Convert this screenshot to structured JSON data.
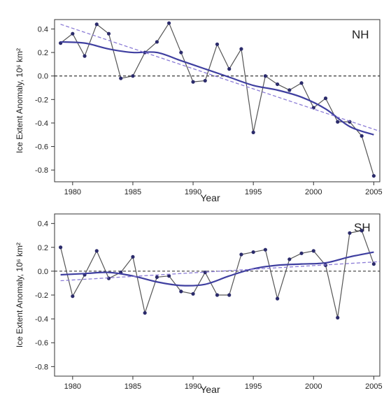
{
  "chart_data": [
    {
      "type": "line",
      "label": "NH",
      "xlabel": "Year",
      "ylabel": "Ice Extent Anomaly, 10⁶ km²",
      "xlim": [
        1978.5,
        2005.5
      ],
      "ylim": [
        -0.9,
        0.48
      ],
      "xticks": [
        1980,
        1985,
        1990,
        1995,
        2000,
        2005
      ],
      "yticks": [
        -0.8,
        -0.6,
        -0.4,
        -0.2,
        0.0,
        0.2,
        0.4
      ],
      "ytick_labels": [
        "-0.8",
        "-0.6",
        "-0.4",
        "-0.2",
        "0.0",
        "0.2",
        "0.4"
      ],
      "zero_line": true,
      "grid": false,
      "colors": {
        "observed": "#555555",
        "points": "#2b2b6b",
        "smooth": "#3f3fa0",
        "trend": "#8b7bd6"
      },
      "series": [
        {
          "kind": "observed",
          "x": [
            1979,
            1980,
            1981,
            1982,
            1983,
            1984,
            1985,
            1986,
            1987,
            1988,
            1989,
            1990,
            1991,
            1992,
            1993,
            1994,
            1995,
            1996,
            1997,
            1998,
            1999,
            2000,
            2001,
            2002,
            2003,
            2004,
            2005
          ],
          "y": [
            0.28,
            0.36,
            0.17,
            0.44,
            0.36,
            -0.02,
            0.0,
            0.2,
            0.29,
            0.45,
            0.2,
            -0.05,
            -0.04,
            0.27,
            0.06,
            0.23,
            -0.48,
            0.0,
            -0.07,
            -0.12,
            -0.06,
            -0.27,
            -0.19,
            -0.39,
            -0.39,
            -0.51,
            -0.85
          ]
        },
        {
          "kind": "smooth",
          "x": [
            1979,
            1981,
            1983,
            1985,
            1987,
            1989,
            1991,
            1993,
            1995,
            1997,
            1999,
            2001,
            2003,
            2005
          ],
          "y": [
            0.29,
            0.28,
            0.23,
            0.2,
            0.2,
            0.13,
            0.06,
            -0.01,
            -0.08,
            -0.12,
            -0.18,
            -0.28,
            -0.43,
            -0.5
          ]
        },
        {
          "kind": "trend",
          "x": [
            1979,
            2005.5
          ],
          "y": [
            0.44,
            -0.47
          ]
        }
      ]
    },
    {
      "type": "line",
      "label": "SH",
      "xlabel": "Year",
      "ylabel": "Ice Extent Anomaly, 10⁶ km²",
      "xlim": [
        1978.5,
        2005.5
      ],
      "ylim": [
        -0.88,
        0.48
      ],
      "xticks": [
        1980,
        1985,
        1990,
        1995,
        2000,
        2005
      ],
      "yticks": [
        -0.8,
        -0.6,
        -0.4,
        -0.2,
        0.0,
        0.2,
        0.4
      ],
      "ytick_labels": [
        "-0.8",
        "-0.6",
        "-0.4",
        "-0.2",
        "0.0",
        "0.2",
        "0.4"
      ],
      "zero_line": true,
      "grid": false,
      "colors": {
        "observed": "#555555",
        "points": "#2b2b6b",
        "smooth": "#3f3fa0",
        "trend": "#8b7bd6"
      },
      "series": [
        {
          "kind": "observed",
          "x": [
            1979,
            1980,
            1981,
            1982,
            1983,
            1984,
            1985,
            1986,
            1987,
            1988,
            1989,
            1990,
            1991,
            1992,
            1993,
            1994,
            1995,
            1996,
            1997,
            1998,
            1999,
            2000,
            2001,
            2002,
            2003,
            2004,
            2005
          ],
          "y": [
            0.2,
            -0.21,
            -0.03,
            0.17,
            -0.06,
            -0.01,
            0.12,
            -0.35,
            -0.05,
            -0.04,
            -0.17,
            -0.19,
            -0.01,
            -0.2,
            -0.2,
            0.14,
            0.16,
            0.18,
            -0.23,
            0.1,
            0.15,
            0.17,
            0.05,
            -0.39,
            0.32,
            0.34,
            0.06
          ]
        },
        {
          "kind": "smooth",
          "x": [
            1979,
            1981,
            1983,
            1985,
            1987,
            1989,
            1991,
            1993,
            1995,
            1997,
            1999,
            2001,
            2003,
            2005
          ],
          "y": [
            -0.03,
            -0.02,
            -0.01,
            -0.04,
            -0.09,
            -0.12,
            -0.11,
            -0.04,
            0.02,
            0.05,
            0.06,
            0.07,
            0.12,
            0.16
          ]
        },
        {
          "kind": "trend",
          "x": [
            1979,
            2005.5
          ],
          "y": [
            -0.08,
            0.08
          ]
        }
      ]
    }
  ]
}
